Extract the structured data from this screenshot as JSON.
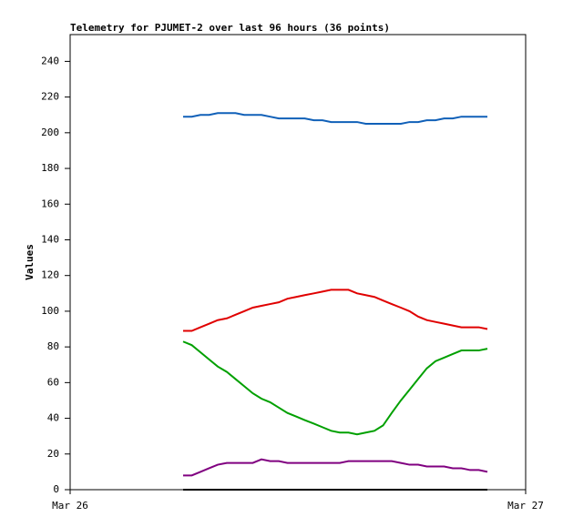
{
  "chart_data": {
    "type": "line",
    "title": "Telemetry for PJUMET-2 over last 96 hours (36 points)",
    "y_label": "Values",
    "x": [
      0.248,
      0.267,
      0.286,
      0.305,
      0.324,
      0.344,
      0.363,
      0.382,
      0.401,
      0.42,
      0.439,
      0.458,
      0.477,
      0.496,
      0.515,
      0.535,
      0.554,
      0.573,
      0.592,
      0.611,
      0.63,
      0.649,
      0.668,
      0.687,
      0.706,
      0.726,
      0.745,
      0.764,
      0.783,
      0.802,
      0.821,
      0.84,
      0.859,
      0.878,
      0.897,
      0.916
    ],
    "xlim": [
      0,
      1
    ],
    "xticks": [
      {
        "value": 0,
        "label": "Mar 26"
      },
      {
        "value": 1,
        "label": "Mar 27"
      }
    ],
    "ylim": [
      0,
      255
    ],
    "yticks": [
      0,
      20,
      40,
      60,
      80,
      100,
      120,
      140,
      160,
      180,
      200,
      220,
      240
    ],
    "grid": false,
    "series": [
      {
        "color": "#1060b8",
        "values": [
          209,
          209,
          210,
          210,
          211,
          211,
          211,
          210,
          210,
          210,
          209,
          208,
          208,
          208,
          208,
          207,
          207,
          206,
          206,
          206,
          206,
          205,
          205,
          205,
          205,
          205,
          206,
          206,
          207,
          207,
          208,
          208,
          209,
          209,
          209,
          209
        ]
      },
      {
        "color": "#e00000",
        "values": [
          89,
          89,
          91,
          93,
          95,
          96,
          98,
          100,
          102,
          103,
          104,
          105,
          107,
          108,
          109,
          110,
          111,
          112,
          112,
          112,
          110,
          109,
          108,
          106,
          104,
          102,
          100,
          97,
          95,
          94,
          93,
          92,
          91,
          91,
          91,
          90
        ]
      },
      {
        "color": "#00a000",
        "values": [
          83,
          81,
          77,
          73,
          69,
          66,
          62,
          58,
          54,
          51,
          49,
          46,
          43,
          41,
          39,
          37,
          35,
          33,
          32,
          32,
          31,
          32,
          33,
          36,
          43,
          50,
          56,
          62,
          68,
          72,
          74,
          76,
          78,
          78,
          78,
          79
        ]
      },
      {
        "color": "#800080",
        "values": [
          8,
          8,
          10,
          12,
          14,
          15,
          15,
          15,
          15,
          17,
          16,
          16,
          15,
          15,
          15,
          15,
          15,
          15,
          15,
          16,
          16,
          16,
          16,
          16,
          16,
          15,
          14,
          14,
          13,
          13,
          13,
          12,
          12,
          11,
          11,
          10
        ]
      },
      {
        "color": "#000000",
        "values": [
          0,
          0,
          0,
          0,
          0,
          0,
          0,
          0,
          0,
          0,
          0,
          0,
          0,
          0,
          0,
          0,
          0,
          0,
          0,
          0,
          0,
          0,
          0,
          0,
          0,
          0,
          0,
          0,
          0,
          0,
          0,
          0,
          0,
          0,
          0,
          0
        ]
      }
    ]
  }
}
